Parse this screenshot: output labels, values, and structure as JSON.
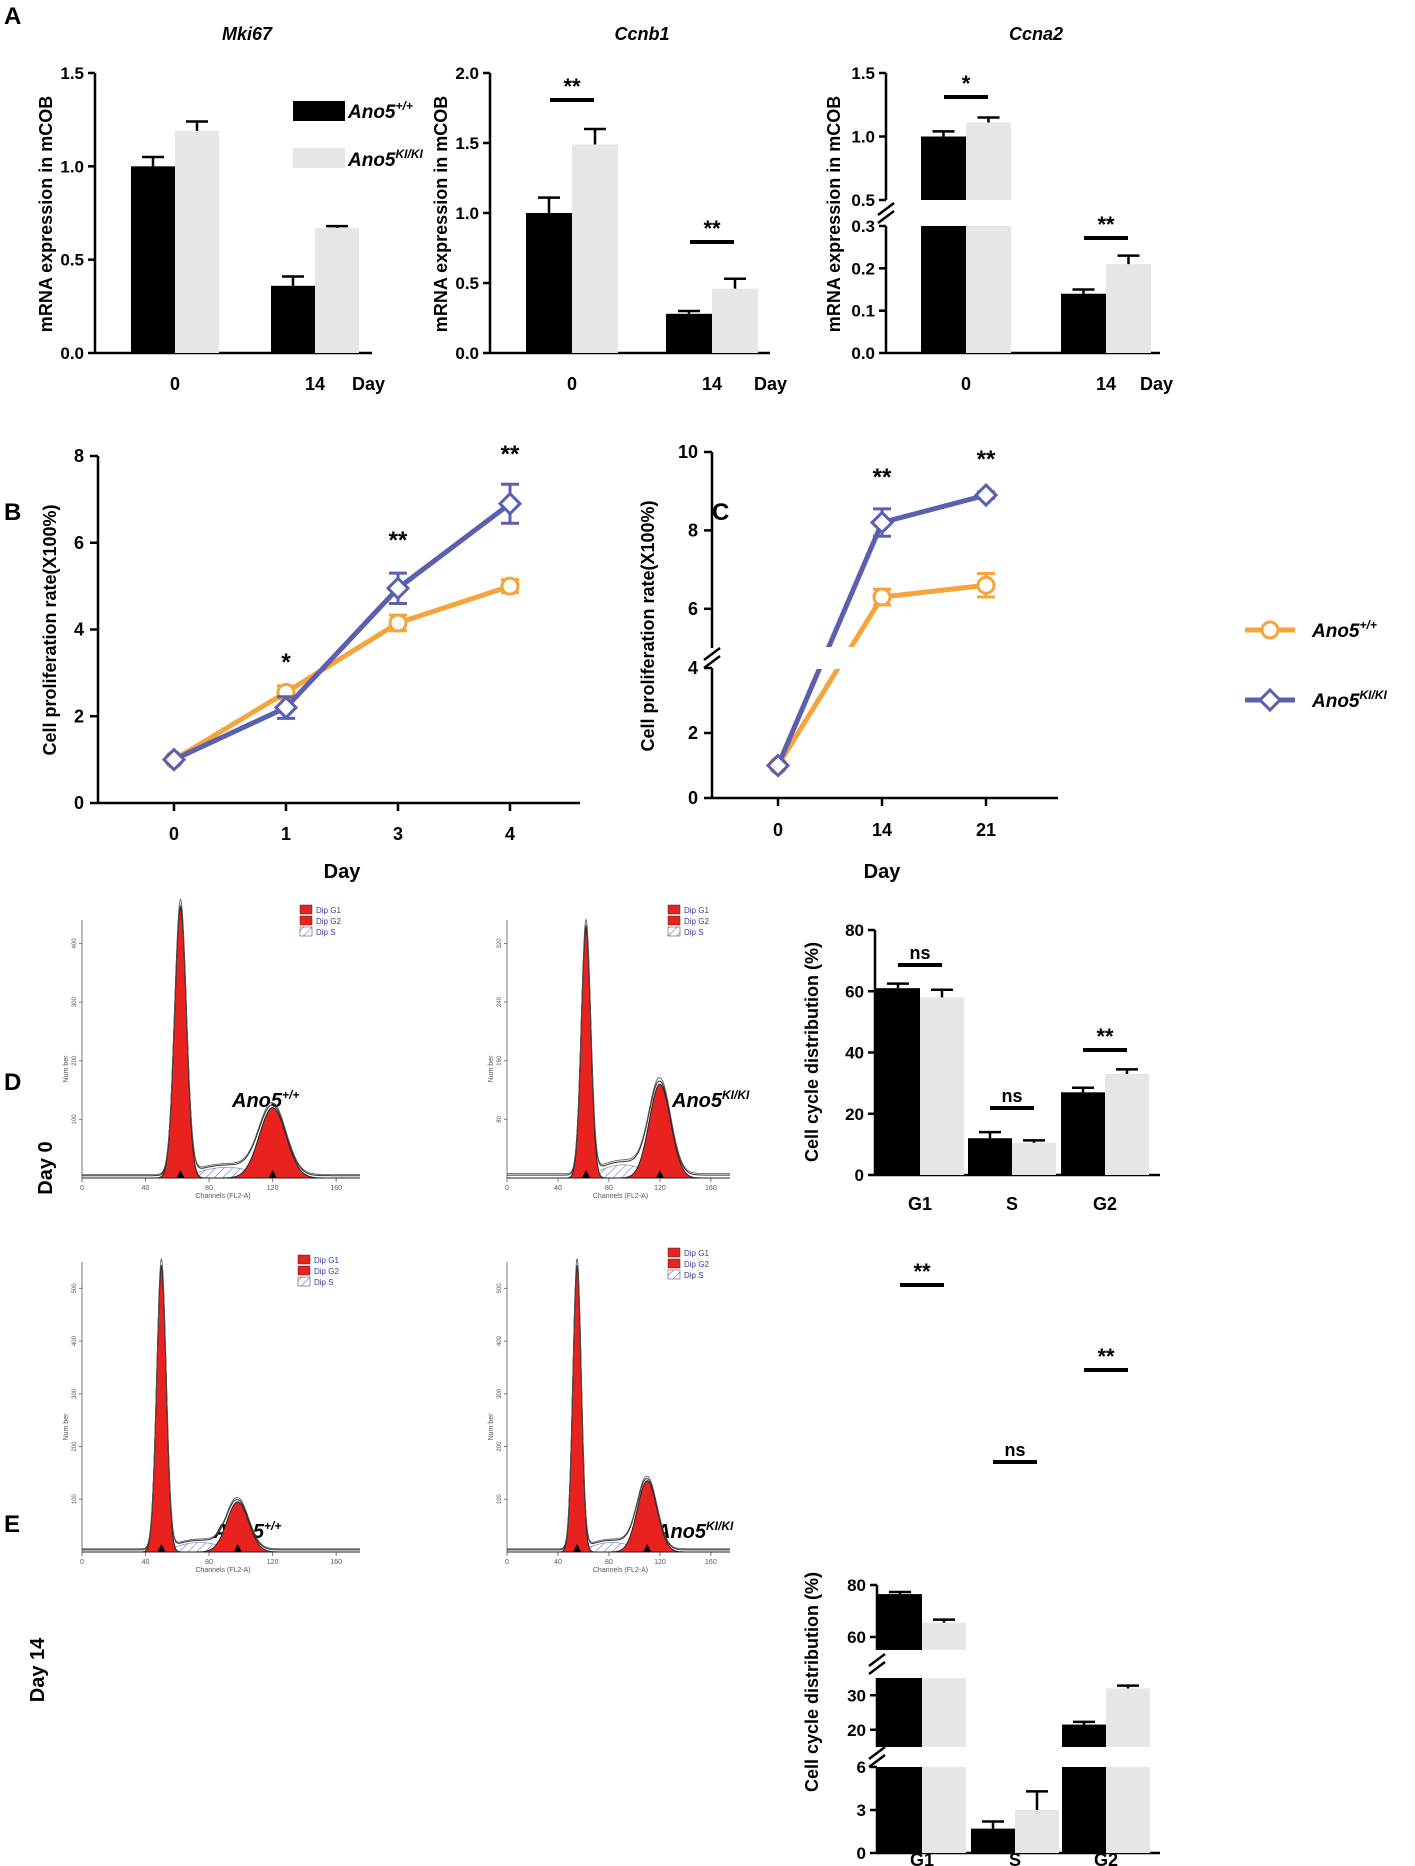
{
  "panels": {
    "A": "A",
    "B": "B",
    "C": "C",
    "D": "D",
    "E": "E"
  },
  "legend": {
    "wt": "Ano5",
    "wt_sup": "+/+",
    "ki": "Ano5",
    "ki_sup": "KI/KI"
  },
  "colors": {
    "wt_bar": "#000000",
    "ki_bar": "#e6e6e6",
    "wt_line": "#f5a43c",
    "ki_line": "#5a5fb0",
    "peak_fill": "#e8221f"
  },
  "chart_data": [
    {
      "id": "A1",
      "type": "bar",
      "title": "Mki67",
      "ylabel": "mRNA expression in mCOB",
      "xlabel": "Day",
      "categories": [
        "0",
        "14"
      ],
      "ylim": [
        0,
        1.5
      ],
      "yticks": [
        "0.0",
        "0.5",
        "1.0",
        "1.5"
      ],
      "series": [
        {
          "name": "Ano5+/+",
          "values": [
            1.0,
            0.36
          ],
          "errors": [
            0.05,
            0.05
          ]
        },
        {
          "name": "Ano5KI/KI",
          "values": [
            1.19,
            0.67
          ],
          "errors": [
            0.05,
            0.01
          ]
        }
      ],
      "significance": [
        "",
        ""
      ]
    },
    {
      "id": "A2",
      "type": "bar",
      "title": "Ccnb1",
      "ylabel": "mRNA expression in mCOB",
      "xlabel": "Day",
      "categories": [
        "0",
        "14"
      ],
      "ylim": [
        0,
        2.0
      ],
      "yticks": [
        "0.0",
        "0.5",
        "1.0",
        "1.5",
        "2.0"
      ],
      "series": [
        {
          "name": "Ano5+/+",
          "values": [
            1.0,
            0.28
          ],
          "errors": [
            0.11,
            0.02
          ]
        },
        {
          "name": "Ano5KI/KI",
          "values": [
            1.49,
            0.46
          ],
          "errors": [
            0.11,
            0.07
          ]
        }
      ],
      "significance": [
        "**",
        "**"
      ]
    },
    {
      "id": "A3",
      "type": "bar",
      "title": "Ccna2",
      "ylabel": "mRNA expression in mCOB",
      "xlabel": "Day",
      "categories": [
        "0",
        "14"
      ],
      "ylim": [
        0,
        1.5
      ],
      "axis_break": [
        0.3,
        0.5
      ],
      "yticks_lower": [
        "0.0",
        "0.1",
        "0.2",
        "0.3"
      ],
      "yticks_upper": [
        "0.5",
        "1.0",
        "1.5"
      ],
      "series": [
        {
          "name": "Ano5+/+",
          "values": [
            1.0,
            0.14
          ],
          "errors": [
            0.04,
            0.01
          ]
        },
        {
          "name": "Ano5KI/KI",
          "values": [
            1.11,
            0.21
          ],
          "errors": [
            0.04,
            0.02
          ]
        }
      ],
      "significance": [
        "*",
        "**"
      ]
    },
    {
      "id": "B",
      "type": "line",
      "ylabel": "Cell proliferation rate(X100%)",
      "xlabel": "Day",
      "x": [
        "0",
        "1",
        "3",
        "4"
      ],
      "ylim": [
        0,
        8
      ],
      "yticks": [
        "0",
        "2",
        "4",
        "6",
        "8"
      ],
      "series": [
        {
          "name": "Ano5+/+",
          "values": [
            1.0,
            2.55,
            4.15,
            5.0
          ],
          "errors": [
            0.05,
            0.15,
            0.18,
            0.15
          ]
        },
        {
          "name": "Ano5KI/KI",
          "values": [
            1.0,
            2.2,
            4.95,
            6.9
          ],
          "errors": [
            0.05,
            0.25,
            0.35,
            0.45
          ]
        }
      ],
      "significance": [
        "",
        "*",
        "**",
        "**"
      ]
    },
    {
      "id": "C",
      "type": "line",
      "ylabel": "Cell proliferation rate(X100%)",
      "xlabel": "Day",
      "x": [
        "0",
        "14",
        "21"
      ],
      "ylim": [
        0,
        10
      ],
      "axis_break": [
        4,
        5
      ],
      "yticks_lower": [
        "0",
        "2",
        "4"
      ],
      "yticks_upper": [
        "6",
        "8",
        "10"
      ],
      "series": [
        {
          "name": "Ano5+/+",
          "values": [
            1.0,
            6.3,
            6.6
          ],
          "errors": [
            0.05,
            0.2,
            0.3
          ]
        },
        {
          "name": "Ano5KI/KI",
          "values": [
            1.0,
            8.2,
            8.9
          ],
          "errors": [
            0.05,
            0.35,
            0.08
          ]
        }
      ],
      "significance": [
        "",
        "**",
        "**"
      ]
    },
    {
      "id": "D-bar",
      "type": "bar",
      "ylabel": "Cell cycle distribution (%)",
      "xlabel": "",
      "categories": [
        "G1",
        "S",
        "G2"
      ],
      "ylim": [
        0,
        80
      ],
      "yticks": [
        "0",
        "20",
        "40",
        "60",
        "80"
      ],
      "series": [
        {
          "name": "Ano5+/+",
          "values": [
            61,
            12,
            27
          ],
          "errors": [
            1.5,
            2,
            1.5
          ]
        },
        {
          "name": "Ano5KI/KI",
          "values": [
            58,
            10.5,
            33
          ],
          "errors": [
            2.5,
            0.8,
            1.5
          ]
        }
      ],
      "significance": [
        "ns",
        "ns",
        "**"
      ]
    },
    {
      "id": "E-bar",
      "type": "bar",
      "ylabel": "Cell cycle distribution (%)",
      "xlabel": "",
      "categories": [
        "G1",
        "S",
        "G2"
      ],
      "ylim": [
        0,
        80
      ],
      "axis_breaks": [
        [
          6,
          15
        ],
        [
          35,
          55
        ]
      ],
      "yticks_lower": [
        "0",
        "3",
        "6"
      ],
      "yticks_mid": [
        "20",
        "30"
      ],
      "yticks_upper": [
        "60",
        "80"
      ],
      "series": [
        {
          "name": "Ano5+/+",
          "values": [
            76.5,
            1.7,
            21.5
          ],
          "errors": [
            0.8,
            0.5,
            0.8
          ]
        },
        {
          "name": "Ano5KI/KI",
          "values": [
            65.5,
            3.0,
            32
          ],
          "errors": [
            1.2,
            1.3,
            0.8
          ]
        }
      ],
      "significance": [
        "**",
        "ns",
        "**"
      ]
    }
  ],
  "histograms": {
    "row_labels": [
      "Day  0",
      "Day  14"
    ],
    "legend_items": [
      "Dip G1",
      "Dip G2",
      "Dip S"
    ],
    "xaxis_label": "Channels (FL2-A)",
    "yaxis_label": "Num ber",
    "xticks": [
      "0",
      "40",
      "80",
      "120",
      "160"
    ],
    "panels": [
      {
        "id": "D-wt",
        "yticks": [
          "100",
          "200",
          "300",
          "400"
        ],
        "g1_peak": 62,
        "g2_peak": 120,
        "g1_height": 460,
        "g2_height": 120
      },
      {
        "id": "D-ki",
        "yticks": [
          "80",
          "160",
          "240",
          "320"
        ],
        "g1_peak": 62,
        "g2_peak": 120,
        "g1_height": 340,
        "g2_height": 128
      },
      {
        "id": "E-wt",
        "yticks": [
          "100",
          "200",
          "300",
          "400",
          "500"
        ],
        "g1_peak": 50,
        "g2_peak": 98,
        "g1_height": 540,
        "g2_height": 95
      },
      {
        "id": "E-ki",
        "yticks": [
          "100",
          "200",
          "300",
          "400",
          "500"
        ],
        "g1_peak": 55,
        "g2_peak": 110,
        "g1_height": 540,
        "g2_height": 135
      }
    ]
  }
}
